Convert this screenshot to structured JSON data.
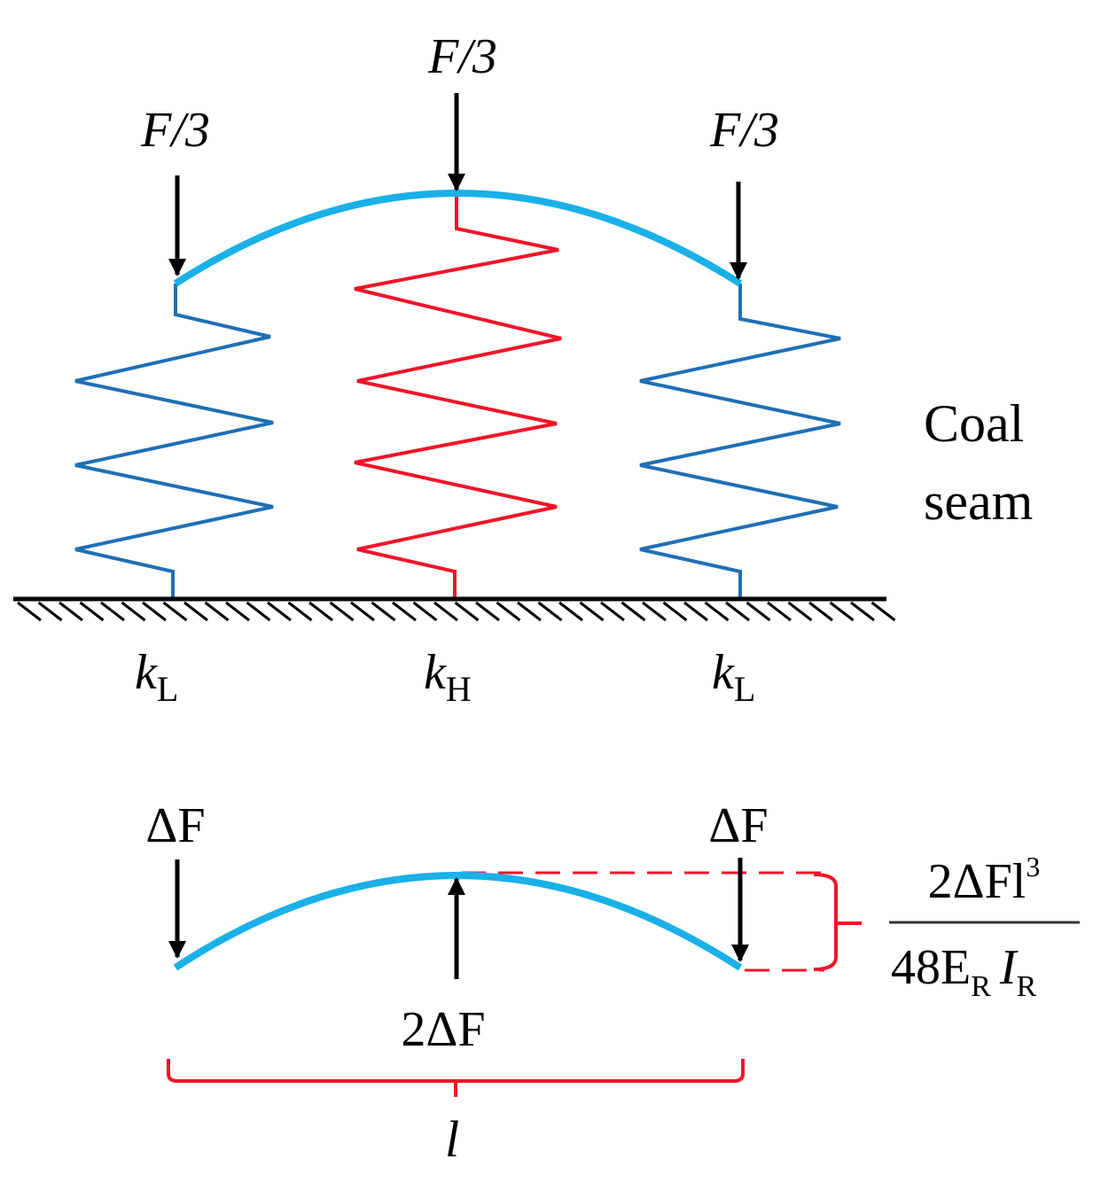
{
  "colors": {
    "beam": "#1ab0e8",
    "soft_spring": "#1f6fb5",
    "hard_spring": "#f0142a",
    "load": "#000000",
    "dimension": "#f0142a"
  },
  "top": {
    "loads": [
      "F/3",
      "F/3",
      "F/3"
    ],
    "springs": [
      {
        "symbol": "k",
        "subscript": "L"
      },
      {
        "symbol": "k",
        "subscript": "H"
      },
      {
        "symbol": "k",
        "subscript": "L"
      }
    ],
    "medium_label_line1": "Coal",
    "medium_label_line2": "seam"
  },
  "bottom": {
    "left_load": "ΔF",
    "right_load": "ΔF",
    "center_reaction": "2ΔF",
    "span_label": "l",
    "deflection": {
      "numerator": "2ΔFl",
      "numerator_exp": "3",
      "denominator_a": "48E",
      "denominator_a_sub": "R",
      "denominator_b": "I",
      "denominator_b_sub": "R"
    }
  }
}
